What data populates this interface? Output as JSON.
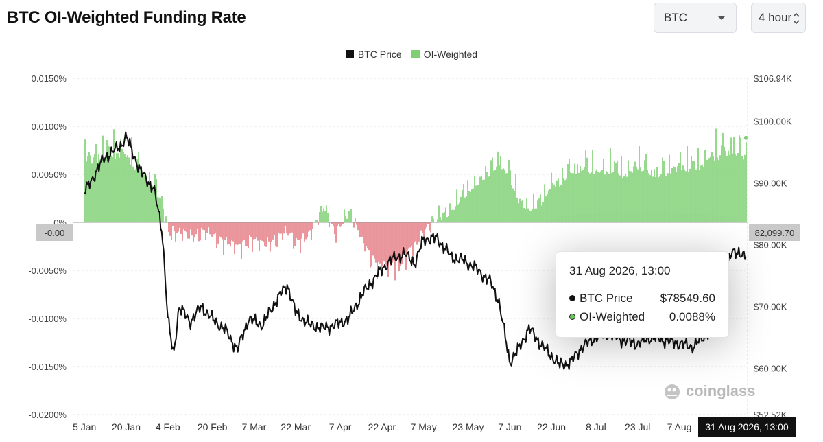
{
  "header": {
    "title": "BTC OI-Weighted Funding Rate",
    "coin_select": "BTC",
    "interval_select": "4 hour"
  },
  "legend": {
    "price": "BTC Price",
    "oi": "OI-Weighted"
  },
  "colors": {
    "price_line": "#111111",
    "positive_bar": "#7dcf72",
    "negative_bar": "#e57c84"
  },
  "tooltip": {
    "time": "31 Aug 2026, 13:00",
    "price_label": "BTC Price",
    "price_value": "$78549.60",
    "oi_label": "OI-Weighted",
    "oi_value": "0.0088%"
  },
  "crosshair": {
    "left_value": "-0.00",
    "right_value": "82,099.70",
    "bottom_value": "31 Aug 2026, 13:00"
  },
  "watermark": "coinglass",
  "chart_data": {
    "type": "area",
    "x_tick_labels": [
      "5 Jan",
      "20 Jan",
      "4 Feb",
      "20 Feb",
      "7 Mar",
      "22 Mar",
      "7 Apr",
      "22 Apr",
      "7 May",
      "23 May",
      "7 Jun",
      "22 Jun",
      "8 Jul",
      "23 Jul",
      "7 Aug"
    ],
    "y_left": {
      "unit": "%",
      "ticks": [
        "0.0150%",
        "0.0100%",
        "0.0050%",
        "0%",
        "-0.0050%",
        "-0.0100%",
        "-0.0150%",
        "-0.0200%"
      ],
      "range": [
        -0.02,
        0.015
      ]
    },
    "y_right": {
      "ticks": [
        "$106.94K",
        "$100.00K",
        "$90.00K",
        "$80.00K",
        "$70.00K",
        "$60.00K",
        "$52.52K"
      ],
      "range": [
        52520,
        106940
      ]
    },
    "series": [
      {
        "name": "BTC Price",
        "kind": "line",
        "axis": "right",
        "points": [
          [
            "5 Jan",
            88500
          ],
          [
            "12 Jan",
            94000
          ],
          [
            "18 Jan",
            96000
          ],
          [
            "20 Jan",
            97500
          ],
          [
            "25 Jan",
            92000
          ],
          [
            "30 Jan",
            89000
          ],
          [
            "2 Feb",
            82000
          ],
          [
            "4 Feb",
            68000
          ],
          [
            "6 Feb",
            62000
          ],
          [
            "8 Feb",
            70000
          ],
          [
            "12 Feb",
            67500
          ],
          [
            "16 Feb",
            70000
          ],
          [
            "20 Feb",
            68000
          ],
          [
            "25 Feb",
            66000
          ],
          [
            "1 Mar",
            63000
          ],
          [
            "5 Mar",
            68000
          ],
          [
            "10 Mar",
            67000
          ],
          [
            "15 Mar",
            71000
          ],
          [
            "19 Mar",
            73500
          ],
          [
            "22 Mar",
            69000
          ],
          [
            "27 Mar",
            67000
          ],
          [
            "1 Apr",
            66500
          ],
          [
            "5 Apr",
            67000
          ],
          [
            "10 Apr",
            68000
          ],
          [
            "15 Apr",
            72000
          ],
          [
            "20 Apr",
            75000
          ],
          [
            "25 Apr",
            77500
          ],
          [
            "30 Apr",
            78500
          ],
          [
            "4 May",
            77000
          ],
          [
            "7 May",
            81000
          ],
          [
            "12 May",
            81000
          ],
          [
            "17 May",
            78000
          ],
          [
            "21 May",
            77500
          ],
          [
            "25 May",
            76500
          ],
          [
            "31 May",
            74000
          ],
          [
            "3 Jun",
            71000
          ],
          [
            "7 Jun",
            61000
          ],
          [
            "10 Jun",
            63000
          ],
          [
            "14 Jun",
            66500
          ],
          [
            "18 Jun",
            64000
          ],
          [
            "22 Jun",
            62000
          ],
          [
            "25 Jun",
            60500
          ],
          [
            "29 Jun",
            61000
          ],
          [
            "3 Jul",
            63500
          ],
          [
            "8 Jul",
            65000
          ],
          [
            "13 Jul",
            65500
          ],
          [
            "18 Jul",
            64500
          ],
          [
            "23 Jul",
            64000
          ],
          [
            "28 Jul",
            65000
          ],
          [
            "2 Aug",
            64500
          ],
          [
            "7 Aug",
            64000
          ],
          [
            "12 Aug",
            63500
          ],
          [
            "18 Aug",
            66000
          ],
          [
            "22 Aug",
            72000
          ],
          [
            "26 Aug",
            79500
          ],
          [
            "29 Aug",
            78000
          ],
          [
            "31 Aug",
            78550
          ]
        ]
      },
      {
        "name": "OI-Weighted",
        "kind": "bars",
        "axis": "left",
        "points": [
          [
            "5 Jan",
            0.0085
          ],
          [
            "12 Jan",
            0.009
          ],
          [
            "18 Jan",
            0.0095
          ],
          [
            "20 Jan",
            0.0088
          ],
          [
            "25 Jan",
            0.007
          ],
          [
            "30 Jan",
            0.005
          ],
          [
            "2 Feb",
            0.002
          ],
          [
            "4 Feb",
            -0.001
          ],
          [
            "8 Feb",
            -0.0015
          ],
          [
            "12 Feb",
            -0.0018
          ],
          [
            "16 Feb",
            -0.0012
          ],
          [
            "20 Feb",
            -0.002
          ],
          [
            "25 Feb",
            -0.0025
          ],
          [
            "1 Mar",
            -0.0035
          ],
          [
            "5 Mar",
            -0.0022
          ],
          [
            "10 Mar",
            -0.003
          ],
          [
            "15 Mar",
            -0.002
          ],
          [
            "19 Mar",
            -0.0015
          ],
          [
            "22 Mar",
            -0.0025
          ],
          [
            "27 Mar",
            -0.0018
          ],
          [
            "1 Apr",
            0.0025
          ],
          [
            "5 Apr",
            -0.002
          ],
          [
            "10 Apr",
            0.002
          ],
          [
            "15 Apr",
            -0.003
          ],
          [
            "20 Apr",
            -0.0055
          ],
          [
            "25 Apr",
            -0.006
          ],
          [
            "30 Apr",
            -0.0045
          ],
          [
            "4 May",
            -0.003
          ],
          [
            "7 May",
            -0.001
          ],
          [
            "12 May",
            0.0005
          ],
          [
            "17 May",
            0.002
          ],
          [
            "21 May",
            0.0035
          ],
          [
            "25 May",
            0.005
          ],
          [
            "31 May",
            0.0065
          ],
          [
            "3 Jun",
            0.0085
          ],
          [
            "7 Jun",
            0.006
          ],
          [
            "10 Jun",
            0.003
          ],
          [
            "14 Jun",
            0.002
          ],
          [
            "18 Jun",
            0.0025
          ],
          [
            "22 Jun",
            0.0055
          ],
          [
            "25 Jun",
            0.005
          ],
          [
            "29 Jun",
            0.007
          ],
          [
            "3 Jul",
            0.0075
          ],
          [
            "8 Jul",
            0.0068
          ],
          [
            "13 Jul",
            0.0072
          ],
          [
            "18 Jul",
            0.0065
          ],
          [
            "23 Jul",
            0.0075
          ],
          [
            "28 Jul",
            0.0068
          ],
          [
            "2 Aug",
            0.0065
          ],
          [
            "7 Aug",
            0.0078
          ],
          [
            "12 Aug",
            0.0072
          ],
          [
            "18 Aug",
            0.0085
          ],
          [
            "22 Aug",
            0.0095
          ],
          [
            "26 Aug",
            0.0102
          ],
          [
            "29 Aug",
            0.009
          ],
          [
            "31 Aug",
            0.0088
          ]
        ]
      }
    ],
    "grid": "horizontal-dashed",
    "legend_position": "top-center"
  }
}
